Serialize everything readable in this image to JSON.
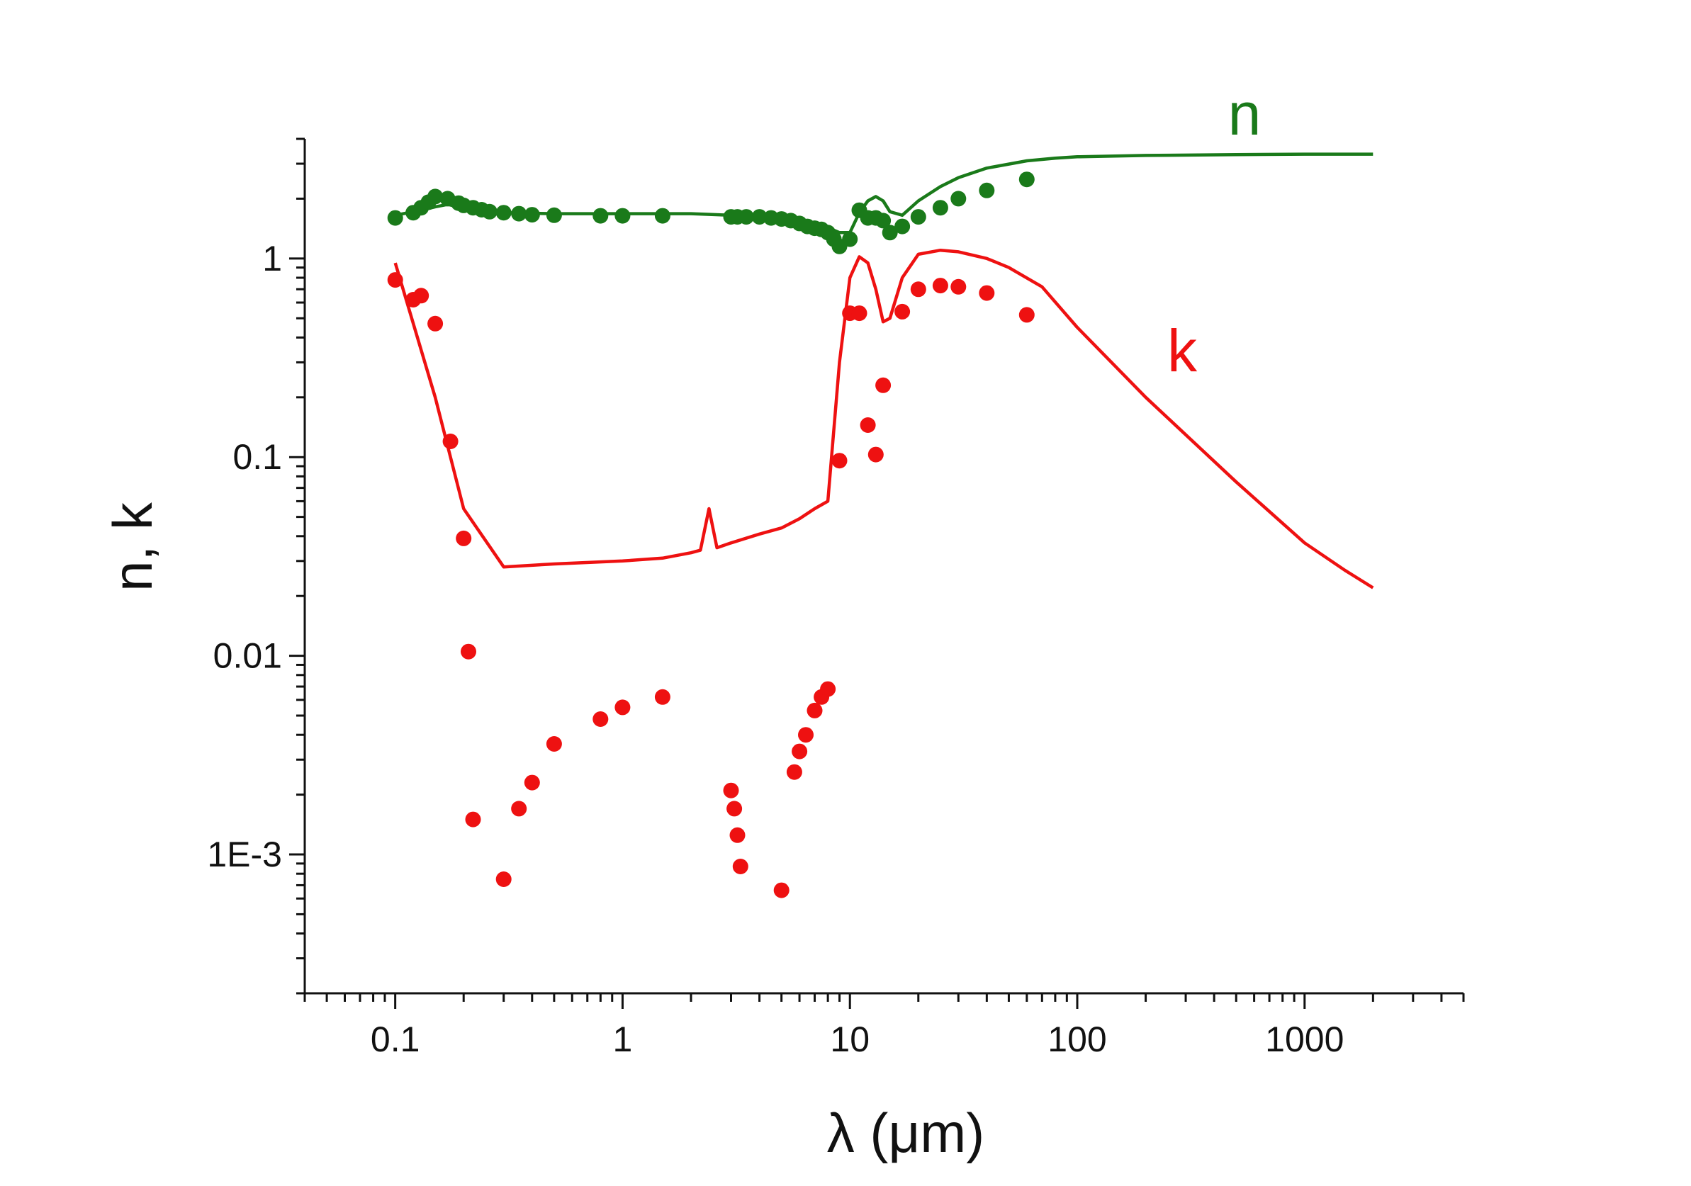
{
  "chart_data": {
    "type": "scatter",
    "title": "",
    "xlabel": "λ (μm)",
    "ylabel": "n, k",
    "xscale": "log",
    "yscale": "log",
    "xlim": [
      0.04,
      5000
    ],
    "ylim": [
      0.0002,
      4
    ],
    "grid": false,
    "x_tick_labels": [
      {
        "value": 0.1,
        "label": "0.1"
      },
      {
        "value": 1,
        "label": "1"
      },
      {
        "value": 10,
        "label": "10"
      },
      {
        "value": 100,
        "label": "100"
      },
      {
        "value": 1000,
        "label": "1000"
      }
    ],
    "y_tick_labels": [
      {
        "value": 0.001,
        "label": "1E-3"
      },
      {
        "value": 0.01,
        "label": "0.01"
      },
      {
        "value": 0.1,
        "label": "0.1"
      },
      {
        "value": 1,
        "label": "1"
      }
    ],
    "series": [
      {
        "name": "n",
        "color": "#1a7a1a",
        "line": {
          "x": [
            0.1,
            0.13,
            0.15,
            0.17,
            0.2,
            0.25,
            0.3,
            0.5,
            1,
            2,
            3,
            5,
            7,
            8,
            9,
            10,
            11,
            12,
            13,
            14,
            15,
            17,
            20,
            25,
            30,
            40,
            60,
            80,
            100,
            200,
            500,
            1000,
            2000
          ],
          "y": [
            1.65,
            1.75,
            1.82,
            1.87,
            1.8,
            1.72,
            1.7,
            1.68,
            1.68,
            1.68,
            1.65,
            1.6,
            1.5,
            1.43,
            1.35,
            1.35,
            1.7,
            1.95,
            2.05,
            1.95,
            1.72,
            1.65,
            1.95,
            2.3,
            2.55,
            2.85,
            3.1,
            3.2,
            3.25,
            3.3,
            3.33,
            3.35,
            3.35
          ]
        },
        "points": {
          "x": [
            0.1,
            0.12,
            0.13,
            0.14,
            0.15,
            0.17,
            0.19,
            0.2,
            0.22,
            0.24,
            0.26,
            0.3,
            0.35,
            0.4,
            0.5,
            0.8,
            1.0,
            1.5,
            3.0,
            3.2,
            3.5,
            4.0,
            4.5,
            5.0,
            5.5,
            6.0,
            6.5,
            7.0,
            7.5,
            8.0,
            8.5,
            9.0,
            10.0,
            11.0,
            12.0,
            13.0,
            14.0,
            15.0,
            17.0,
            20.0,
            25.0,
            30.0,
            40.0,
            60.0
          ],
          "y": [
            1.6,
            1.7,
            1.8,
            1.92,
            2.05,
            2.0,
            1.9,
            1.85,
            1.8,
            1.76,
            1.72,
            1.7,
            1.68,
            1.66,
            1.65,
            1.64,
            1.64,
            1.64,
            1.62,
            1.62,
            1.62,
            1.62,
            1.6,
            1.58,
            1.55,
            1.5,
            1.45,
            1.42,
            1.4,
            1.35,
            1.25,
            1.15,
            1.25,
            1.75,
            1.6,
            1.6,
            1.55,
            1.35,
            1.45,
            1.62,
            1.8,
            2.0,
            2.2,
            2.5
          ]
        }
      },
      {
        "name": "k",
        "color": "#ee1111",
        "line": {
          "x": [
            0.1,
            0.15,
            0.2,
            0.3,
            0.5,
            1.0,
            1.5,
            2.0,
            2.2,
            2.4,
            2.6,
            3.0,
            4.0,
            5.0,
            6.0,
            7.0,
            8.0,
            9.0,
            10.0,
            11.0,
            12.0,
            13.0,
            14.0,
            15.0,
            17.0,
            20.0,
            25.0,
            30.0,
            40.0,
            50.0,
            70.0,
            100.0,
            200.0,
            500.0,
            1000.0,
            1500.0,
            2000.0
          ],
          "y": [
            0.95,
            0.2,
            0.055,
            0.028,
            0.029,
            0.03,
            0.031,
            0.033,
            0.034,
            0.055,
            0.035,
            0.037,
            0.041,
            0.044,
            0.049,
            0.055,
            0.06,
            0.3,
            0.8,
            1.02,
            0.95,
            0.7,
            0.48,
            0.5,
            0.8,
            1.05,
            1.1,
            1.08,
            1.0,
            0.9,
            0.72,
            0.45,
            0.2,
            0.075,
            0.037,
            0.027,
            0.022
          ]
        },
        "points": {
          "x": [
            0.1,
            0.12,
            0.13,
            0.15,
            0.175,
            0.2,
            0.21,
            0.22,
            0.3,
            0.35,
            0.4,
            0.5,
            0.8,
            1.0,
            1.5,
            3.0,
            3.1,
            3.2,
            3.3,
            5.0,
            5.7,
            6.0,
            6.4,
            7.0,
            7.5,
            8.0,
            9.0,
            10.0,
            11.0,
            12.0,
            13.0,
            14.0,
            17.0,
            20.0,
            25.0,
            30.0,
            40.0,
            60.0
          ],
          "y": [
            0.78,
            0.62,
            0.65,
            0.47,
            0.12,
            0.039,
            0.0105,
            0.0015,
            0.00075,
            0.0017,
            0.0023,
            0.0036,
            0.0048,
            0.0055,
            0.0062,
            0.0021,
            0.0017,
            0.00125,
            0.00087,
            0.00066,
            0.0026,
            0.0033,
            0.004,
            0.0053,
            0.0062,
            0.0068,
            0.096,
            0.53,
            0.53,
            0.145,
            0.103,
            0.23,
            0.54,
            0.7,
            0.73,
            0.72,
            0.67,
            0.52
          ]
        }
      }
    ]
  },
  "labels": {
    "n_tag": "n",
    "k_tag": "k"
  }
}
